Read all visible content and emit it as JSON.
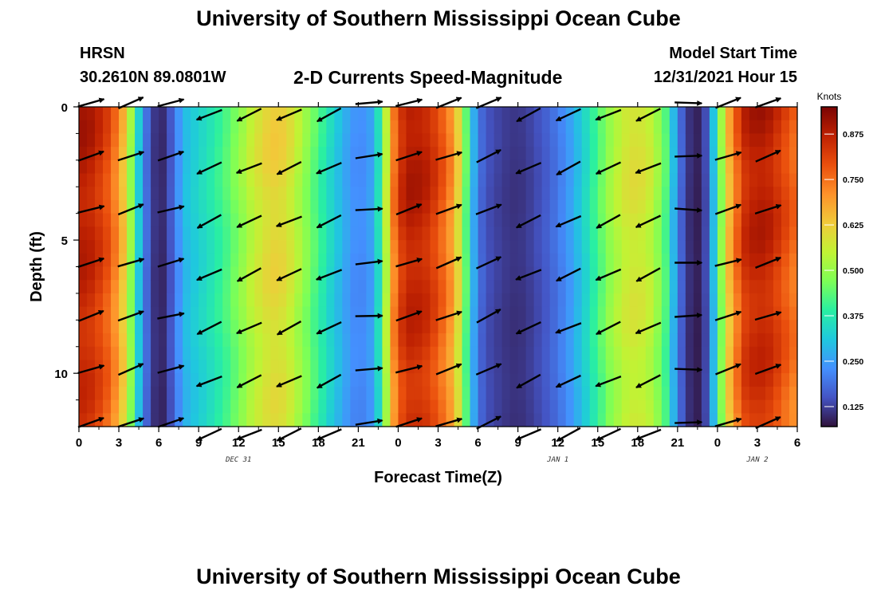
{
  "header": {
    "title": "University of Southern Mississippi Ocean Cube",
    "station": "HRSN",
    "coords": "30.2610N  89.0801W",
    "plot_title": "2-D Currents Speed-Magnitude",
    "model_start_label": "Model Start Time",
    "model_start_value": "12/31/2021 Hour 15"
  },
  "footer": {
    "title": "University of Southern Mississippi Ocean Cube"
  },
  "chart_data": {
    "type": "heatmap",
    "title": "2-D Currents Speed-Magnitude",
    "xlabel": "Forecast Time(Z)",
    "ylabel": "Depth (ft)",
    "x_ticks": [
      "0",
      "3",
      "6",
      "9",
      "12",
      "15",
      "18",
      "21",
      "0",
      "3",
      "6",
      "9",
      "12",
      "15",
      "18",
      "21",
      "0",
      "3",
      "6"
    ],
    "x_tick_hours": [
      0,
      3,
      6,
      9,
      12,
      15,
      18,
      21,
      24,
      27,
      30,
      33,
      36,
      39,
      42,
      45,
      48,
      51,
      54
    ],
    "x_range_hours": [
      0,
      54
    ],
    "date_labels": [
      {
        "text": "DEC 31",
        "hour": 12
      },
      {
        "text": "JAN 1",
        "hour": 36
      },
      {
        "text": "JAN 2",
        "hour": 51
      }
    ],
    "y_ticks": [
      "0",
      "5",
      "10"
    ],
    "y_tick_values": [
      0,
      5,
      10
    ],
    "y_range": [
      0,
      12
    ],
    "y_inverted": true,
    "colorbar": {
      "label": "Knots",
      "range": [
        0.07,
        0.95
      ],
      "ticks": [
        "0.125",
        "0.250",
        "0.375",
        "0.500",
        "0.625",
        "0.750",
        "0.875"
      ],
      "tick_values": [
        0.125,
        0.25,
        0.375,
        0.5,
        0.625,
        0.75,
        0.875
      ],
      "colors": [
        "#30123b",
        "#4454c4",
        "#4490fe",
        "#1fc8de",
        "#29efa2",
        "#7dff56",
        "#c1f334",
        "#f1ca3a",
        "#fe922a",
        "#ea4f0d",
        "#be2102",
        "#7a0403"
      ]
    },
    "speed_profile": {
      "description_hours": [
        0,
        1,
        2,
        3,
        3.5,
        4,
        4.5,
        5,
        5.5,
        6,
        6.5,
        7,
        7.5,
        8,
        9,
        10,
        11,
        12,
        13,
        14,
        15,
        16,
        17,
        18,
        19,
        20,
        21,
        22,
        22.5,
        23,
        23.5,
        24,
        25,
        26,
        27,
        28,
        28.5,
        29,
        29.5,
        30,
        30.5,
        31,
        32,
        33,
        34,
        35,
        36,
        37,
        38,
        39,
        40,
        41,
        42,
        43,
        44,
        44.5,
        45,
        45.5,
        46,
        46.5,
        47,
        47.5,
        48,
        49,
        50,
        51,
        52,
        53,
        54
      ],
      "speed_knots": [
        0.9,
        0.88,
        0.82,
        0.72,
        0.62,
        0.48,
        0.32,
        0.2,
        0.13,
        0.09,
        0.11,
        0.17,
        0.24,
        0.3,
        0.34,
        0.38,
        0.43,
        0.49,
        0.56,
        0.61,
        0.63,
        0.58,
        0.5,
        0.42,
        0.34,
        0.27,
        0.22,
        0.26,
        0.36,
        0.52,
        0.7,
        0.84,
        0.9,
        0.88,
        0.82,
        0.72,
        0.62,
        0.48,
        0.32,
        0.2,
        0.16,
        0.14,
        0.12,
        0.11,
        0.13,
        0.16,
        0.2,
        0.26,
        0.34,
        0.43,
        0.52,
        0.58,
        0.6,
        0.56,
        0.46,
        0.34,
        0.22,
        0.14,
        0.1,
        0.09,
        0.12,
        0.22,
        0.42,
        0.7,
        0.86,
        0.9,
        0.88,
        0.82,
        0.76
      ]
    },
    "vector_rows_ft": [
      0,
      2,
      4,
      6,
      8,
      10,
      12
    ],
    "vector_columns": [
      {
        "hour": 0.9,
        "dir_deg": 18
      },
      {
        "hour": 3.9,
        "dir_deg": 20
      },
      {
        "hour": 6.9,
        "dir_deg": 15
      },
      {
        "hour": 9.8,
        "dir_deg": -155
      },
      {
        "hour": 12.8,
        "dir_deg": -155
      },
      {
        "hour": 15.8,
        "dir_deg": -155
      },
      {
        "hour": 18.8,
        "dir_deg": -155
      },
      {
        "hour": 21.8,
        "dir_deg": 5
      },
      {
        "hour": 24.8,
        "dir_deg": 18
      },
      {
        "hour": 27.8,
        "dir_deg": 20
      },
      {
        "hour": 30.8,
        "dir_deg": 25
      },
      {
        "hour": 33.8,
        "dir_deg": -155
      },
      {
        "hour": 36.8,
        "dir_deg": -155
      },
      {
        "hour": 39.8,
        "dir_deg": -155
      },
      {
        "hour": 42.8,
        "dir_deg": -155
      },
      {
        "hour": 45.8,
        "dir_deg": 0
      },
      {
        "hour": 48.8,
        "dir_deg": 18
      },
      {
        "hour": 51.8,
        "dir_deg": 20
      }
    ]
  }
}
